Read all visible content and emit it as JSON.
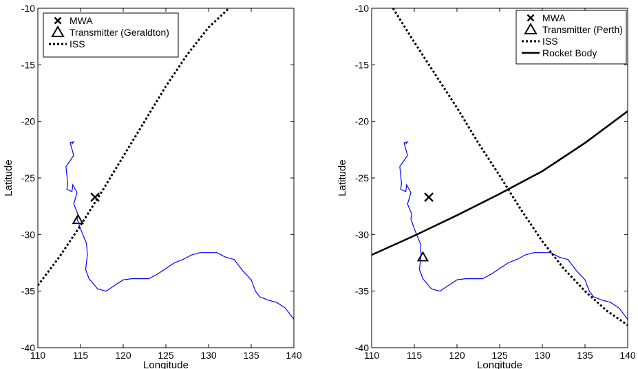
{
  "chart_data": [
    {
      "type": "line",
      "xlabel": "Longitude",
      "ylabel": "Latitude",
      "xlim": [
        110,
        140
      ],
      "ylim": [
        -40,
        -10
      ],
      "xticks": [
        110,
        115,
        120,
        125,
        130,
        135,
        140
      ],
      "yticks": [
        -40,
        -35,
        -30,
        -25,
        -20,
        -15,
        -10
      ],
      "grid": false,
      "legend_position": "top-left",
      "legend": [
        {
          "label": "MWA",
          "marker": "cross"
        },
        {
          "label": "Transmitter (Geraldton)",
          "marker": "triangle"
        },
        {
          "label": "ISS",
          "style": "dotted"
        }
      ],
      "markers": [
        {
          "name": "MWA",
          "symbol": "cross",
          "x": 116.7,
          "y": -26.7
        },
        {
          "name": "Transmitter (Geraldton)",
          "symbol": "triangle",
          "x": 114.7,
          "y": -28.7
        }
      ],
      "series": [
        {
          "name": "ISS",
          "style": "dotted",
          "color": "#000000",
          "x": [
            110.0,
            112.5,
            115.0,
            117.5,
            120.0,
            122.5,
            125.0,
            127.5,
            130.0,
            132.4
          ],
          "y": [
            -34.5,
            -32.0,
            -29.2,
            -26.2,
            -23.1,
            -20.0,
            -16.9,
            -14.1,
            -11.7,
            -10.0
          ]
        }
      ],
      "coastline": {
        "color": "#0000ff",
        "x": [
          114.0,
          114.2,
          113.8,
          114.2,
          113.3,
          113.5,
          113.4,
          114.0,
          114.1,
          114.6,
          114.2,
          114.7,
          114.6,
          115.0,
          115.7,
          115.8,
          115.6,
          116.0,
          117.0,
          118.0,
          119.0,
          120.0,
          121.0,
          122.0,
          123.0,
          124.0,
          125.0,
          126.0,
          127.0,
          128.0,
          129.0,
          130.0,
          131.0,
          132.0,
          133.0,
          134.0,
          135.0,
          135.5,
          136.0,
          137.0,
          138.0,
          139.0,
          140.0
        ],
        "y": [
          -22.0,
          -21.8,
          -21.9,
          -23.0,
          -24.0,
          -25.5,
          -26.0,
          -26.2,
          -25.6,
          -26.3,
          -27.3,
          -28.2,
          -28.6,
          -29.5,
          -30.8,
          -31.8,
          -33.1,
          -33.9,
          -34.8,
          -35.0,
          -34.5,
          -34.0,
          -33.9,
          -33.9,
          -33.9,
          -33.5,
          -33.0,
          -32.5,
          -32.2,
          -31.8,
          -31.6,
          -31.6,
          -31.6,
          -32.0,
          -32.2,
          -33.2,
          -34.0,
          -35.0,
          -35.5,
          -35.8,
          -36.0,
          -36.5,
          -37.5
        ]
      }
    },
    {
      "type": "line",
      "xlabel": "Longitude",
      "ylabel": "Latitude",
      "xlim": [
        110,
        140
      ],
      "ylim": [
        -40,
        -10
      ],
      "xticks": [
        110,
        115,
        120,
        125,
        130,
        135,
        140
      ],
      "yticks": [
        -40,
        -35,
        -30,
        -25,
        -20,
        -15,
        -10
      ],
      "grid": false,
      "legend_position": "top-right",
      "legend": [
        {
          "label": "MWA",
          "marker": "cross"
        },
        {
          "label": "Transmitter (Perth)",
          "marker": "triangle"
        },
        {
          "label": "ISS",
          "style": "dotted"
        },
        {
          "label": "Rocket Body",
          "style": "solid"
        }
      ],
      "markers": [
        {
          "name": "MWA",
          "symbol": "cross",
          "x": 116.7,
          "y": -26.7
        },
        {
          "name": "Transmitter (Perth)",
          "symbol": "triangle",
          "x": 116.0,
          "y": -32.0
        }
      ],
      "series": [
        {
          "name": "ISS",
          "style": "dotted",
          "color": "#000000",
          "x": [
            112.5,
            115.0,
            117.5,
            120.0,
            122.5,
            125.0,
            127.5,
            130.0,
            132.5,
            135.0,
            137.5,
            140.0
          ],
          "y": [
            -10.0,
            -13.0,
            -15.9,
            -18.8,
            -21.9,
            -24.8,
            -27.8,
            -30.6,
            -33.0,
            -35.0,
            -36.7,
            -38.0
          ]
        },
        {
          "name": "Rocket Body",
          "style": "solid",
          "color": "#000000",
          "x": [
            110.0,
            115.0,
            120.0,
            125.0,
            130.0,
            135.0,
            140.0
          ],
          "y": [
            -31.8,
            -30.1,
            -28.3,
            -26.4,
            -24.4,
            -21.9,
            -19.1
          ]
        }
      ],
      "coastline": {
        "color": "#0000ff",
        "x": [
          114.0,
          114.2,
          113.8,
          114.2,
          113.3,
          113.5,
          113.4,
          114.0,
          114.1,
          114.6,
          114.2,
          114.7,
          114.6,
          115.0,
          115.7,
          115.8,
          115.6,
          116.0,
          117.0,
          118.0,
          119.0,
          120.0,
          121.0,
          122.0,
          123.0,
          124.0,
          125.0,
          126.0,
          127.0,
          128.0,
          129.0,
          130.0,
          131.0,
          132.0,
          133.0,
          134.0,
          135.0,
          135.5,
          136.0,
          137.0,
          138.0,
          139.0,
          140.0
        ],
        "y": [
          -22.0,
          -21.8,
          -21.9,
          -23.0,
          -24.0,
          -25.5,
          -26.0,
          -26.2,
          -25.6,
          -26.3,
          -27.3,
          -28.2,
          -28.6,
          -29.5,
          -30.8,
          -31.8,
          -33.1,
          -33.9,
          -34.8,
          -35.0,
          -34.5,
          -34.0,
          -33.9,
          -33.9,
          -33.9,
          -33.5,
          -33.0,
          -32.5,
          -32.2,
          -31.8,
          -31.6,
          -31.6,
          -31.6,
          -32.0,
          -32.2,
          -33.2,
          -34.0,
          -35.0,
          -35.5,
          -35.8,
          -36.0,
          -36.5,
          -37.5
        ]
      }
    }
  ]
}
